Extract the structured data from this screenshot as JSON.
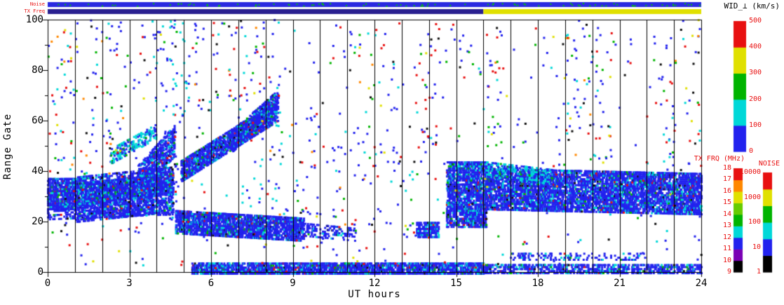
{
  "chart_data": {
    "type": "heatmap",
    "title": "",
    "xlabel": "UT hours",
    "ylabel": "Range Gate",
    "xlim": [
      0,
      24
    ],
    "ylim": [
      0,
      100
    ],
    "xticks": [
      0,
      3,
      6,
      9,
      12,
      15,
      18,
      21,
      24
    ],
    "yticks": [
      0,
      20,
      40,
      60,
      80,
      100
    ],
    "yticks_minor": [
      10,
      30,
      50,
      70,
      90
    ],
    "grid": "vertical-lines-every-hour",
    "legend_position": "right",
    "point_colors": {
      "blue": "#2222ee",
      "cyan": "#00d8d8",
      "green": "#00b400",
      "red": "#e81010",
      "yellow": "#e0e000",
      "orange": "#ff8800",
      "black": "#101010",
      "purple": "#7a00b4"
    },
    "palettes": {
      "band": [
        [
          "blue",
          0.8
        ],
        [
          "cyan",
          0.13
        ],
        [
          "green",
          0.03
        ],
        [
          "red",
          0.02
        ],
        [
          "black",
          0.02
        ]
      ],
      "cyanband": [
        [
          "cyan",
          0.55
        ],
        [
          "blue",
          0.4
        ],
        [
          "green",
          0.05
        ]
      ],
      "mixed": [
        [
          "blue",
          0.45
        ],
        [
          "cyan",
          0.14
        ],
        [
          "red",
          0.16
        ],
        [
          "green",
          0.1
        ],
        [
          "black",
          0.07
        ],
        [
          "yellow",
          0.04
        ],
        [
          "orange",
          0.04
        ]
      ],
      "reddish": [
        [
          "red",
          0.5
        ],
        [
          "blue",
          0.3
        ],
        [
          "green",
          0.1
        ],
        [
          "black",
          0.1
        ]
      ]
    },
    "bands": [
      {
        "t0": 0.0,
        "t1": 1.05,
        "g0": 31,
        "g1": 31,
        "hw": 6,
        "density": 0.62
      },
      {
        "t0": 1.05,
        "t1": 4.6,
        "g0": 29,
        "g1": 33,
        "hw": 9,
        "density": 0.35
      },
      {
        "t0": 1.05,
        "t1": 4.6,
        "g0": 31,
        "g1": 35,
        "hw": 4,
        "density": 0.6
      },
      {
        "t0": 0.0,
        "t1": 4.6,
        "g0": 24,
        "g1": 26,
        "hw": 3,
        "density": 0.28
      },
      {
        "t0": 2.3,
        "t1": 4.0,
        "g0": 46,
        "g1": 56,
        "hw": 3,
        "density": 0.3,
        "palette": "cyanband"
      },
      {
        "t0": 3.3,
        "t1": 4.65,
        "g0": 36,
        "g1": 52,
        "hw": 6,
        "density": 0.5
      },
      {
        "t0": 4.9,
        "t1": 8.45,
        "g0": 40,
        "g1": 64,
        "hw": 4,
        "density": 0.62
      },
      {
        "t0": 6.8,
        "t1": 8.45,
        "g0": 52,
        "g1": 68,
        "hw": 4,
        "density": 0.5
      },
      {
        "t0": 4.7,
        "t1": 9.4,
        "g0": 20,
        "g1": 17,
        "hw": 4.5,
        "density": 0.6
      },
      {
        "t0": 9.4,
        "t1": 11.3,
        "g0": 17,
        "g1": 15,
        "hw": 2.5,
        "density": 0.22
      },
      {
        "t0": 5.3,
        "t1": 16.0,
        "g0": 1.5,
        "g1": 1.5,
        "hw": 2,
        "density": 0.6
      },
      {
        "t0": 16.0,
        "t1": 24.0,
        "g0": 1.5,
        "g1": 1.5,
        "hw": 1.8,
        "density": 0.4
      },
      {
        "t0": 17.0,
        "t1": 22.0,
        "g0": 6.5,
        "g1": 6.5,
        "hw": 1.5,
        "density": 0.18
      },
      {
        "t0": 13.55,
        "t1": 14.35,
        "g0": 17,
        "g1": 17,
        "hw": 3,
        "density": 0.55
      },
      {
        "t0": 14.65,
        "t1": 16.1,
        "g0": 31,
        "g1": 31,
        "hw": 13,
        "density": 0.6
      },
      {
        "t0": 16.1,
        "t1": 24.0,
        "g0": 33,
        "g1": 31,
        "hw": 8,
        "density": 0.55
      },
      {
        "t0": 16.1,
        "t1": 18.5,
        "g0": 41,
        "g1": 38,
        "hw": 3,
        "density": 0.3,
        "palette": "cyanband"
      }
    ],
    "speckle_groups": [
      {
        "t0": 0,
        "t1": 24,
        "g0": 0,
        "g1": 100,
        "count": 520,
        "palette": "mixed"
      },
      {
        "t0": 0.2,
        "t1": 1.1,
        "g0": 40,
        "g1": 100,
        "count": 30,
        "palette": "mixed"
      },
      {
        "t0": 1.4,
        "t1": 2.7,
        "g0": 38,
        "g1": 100,
        "count": 45,
        "palette": "mixed"
      },
      {
        "t0": 3.8,
        "t1": 5.2,
        "g0": 52,
        "g1": 100,
        "count": 55,
        "palette": "cyanband"
      },
      {
        "t0": 5.3,
        "t1": 8.6,
        "g0": 68,
        "g1": 100,
        "count": 55,
        "palette": "mixed"
      },
      {
        "t0": 7.0,
        "t1": 8.6,
        "g0": 25,
        "g1": 66,
        "count": 35,
        "palette": "cyanband"
      },
      {
        "t0": 4.3,
        "t1": 4.8,
        "g0": 20,
        "g1": 58,
        "count": 40,
        "palette": "band"
      },
      {
        "t0": 9.0,
        "t1": 13.6,
        "g0": 4,
        "g1": 96,
        "count": 110,
        "palette": "mixed"
      },
      {
        "t0": 13.6,
        "t1": 14.4,
        "g0": 35,
        "g1": 100,
        "count": 30,
        "palette": "reddish"
      },
      {
        "t0": 16.1,
        "t1": 16.7,
        "g0": 45,
        "g1": 100,
        "count": 28,
        "palette": "mixed"
      },
      {
        "t0": 18.7,
        "t1": 20.7,
        "g0": 42,
        "g1": 100,
        "count": 55,
        "palette": "mixed"
      },
      {
        "t0": 22.7,
        "t1": 24.0,
        "g0": 40,
        "g1": 100,
        "count": 40,
        "palette": "mixed"
      }
    ],
    "strips": {
      "noise": {
        "label": "Noise",
        "base_color": "#2a2ae0",
        "speckle_color": "#00c800",
        "speckle_count": 90
      },
      "tx": {
        "label": "TX Freq",
        "segments": [
          {
            "t0": 0,
            "t1": 16,
            "color": "#2a2090"
          },
          {
            "t0": 16,
            "t1": 24,
            "color": "#e0e000"
          }
        ]
      }
    },
    "colorbars": [
      {
        "id": "wid",
        "title": "WID_⊥ (km/s)",
        "ticks": [
          "0",
          "100",
          "200",
          "300",
          "400",
          "500"
        ],
        "segments_bottom_to_top": [
          "#2222ee",
          "#00d8d8",
          "#00b400",
          "#e0e000",
          "#e81010"
        ]
      },
      {
        "id": "txfrq",
        "title": "TX FRQ (MHz)",
        "ticks": [
          "9",
          "10",
          "11",
          "12",
          "13",
          "14",
          "15",
          "16",
          "17",
          "18"
        ],
        "segments_bottom_to_top": [
          "#000000",
          "#7a00b4",
          "#2222ee",
          "#00d8d8",
          "#00b400",
          "#66cc00",
          "#e0e000",
          "#ff8800",
          "#e81010"
        ]
      },
      {
        "id": "noise",
        "title": "NOISE",
        "ticks": [
          "1",
          "10",
          "100",
          "1000",
          "10000"
        ],
        "segments_bottom_to_top": [
          "#000000",
          "#2222ee",
          "#00d8d8",
          "#00b400",
          "#e0e000",
          "#e81010"
        ]
      }
    ]
  }
}
